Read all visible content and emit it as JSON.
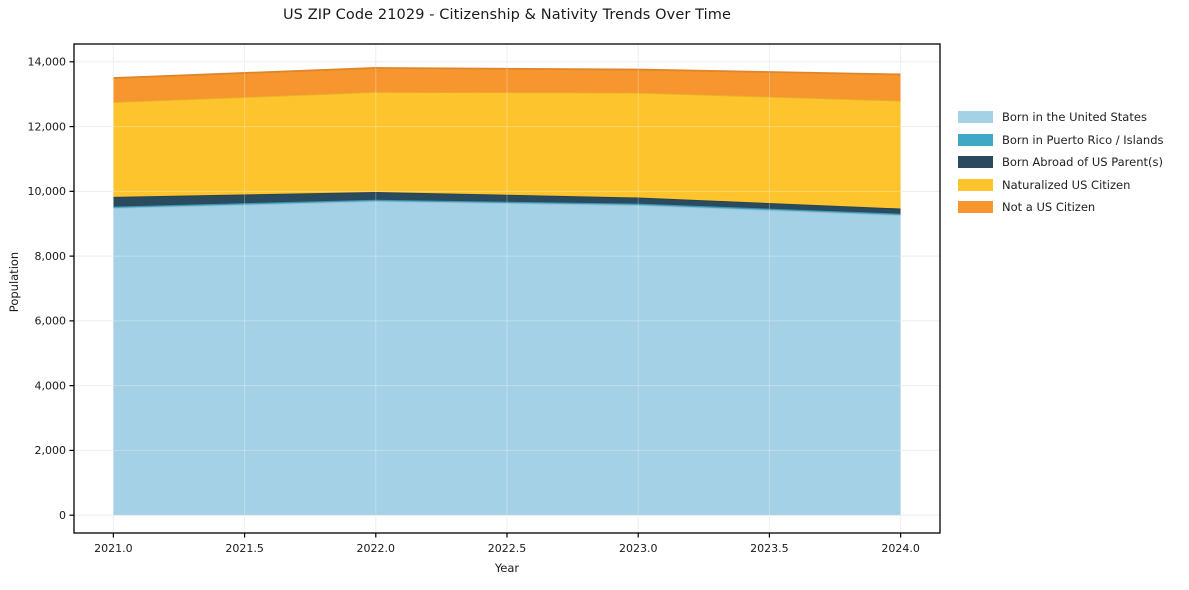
{
  "title": "US ZIP Code 21029 - Citizenship & Nativity Trends Over Time",
  "xlabel": "Year",
  "ylabel": "Population",
  "colors": {
    "background": "#ffffff",
    "axis_frame": "#000000",
    "gridline": "#e9e9e9",
    "tick_label": "#1a1a1a"
  },
  "chart_data": {
    "type": "area",
    "stacked": true,
    "title": "US ZIP Code 21029 - Citizenship & Nativity Trends Over Time",
    "xlabel": "Year",
    "ylabel": "Population",
    "x": [
      2021,
      2022,
      2023,
      2024
    ],
    "series": [
      {
        "name": "Born in the United States",
        "color": "#a4d1e6",
        "values": [
          9490,
          9700,
          9580,
          9270
        ]
      },
      {
        "name": "Born in Puerto Rico / Islands",
        "color": "#40a7c5",
        "values": [
          40,
          40,
          40,
          40
        ]
      },
      {
        "name": "Born Abroad of US Parent(s)",
        "color": "#2a4a5e",
        "values": [
          300,
          240,
          190,
          160
        ]
      },
      {
        "name": "Naturalized US Citizen",
        "color": "#fdc42e",
        "values": [
          2930,
          3090,
          3240,
          3330
        ]
      },
      {
        "name": "Not a US Citizen",
        "color": "#f7952f",
        "values": [
          740,
          740,
          710,
          810
        ]
      }
    ],
    "totals": [
      13500,
      13810,
      13760,
      13610
    ],
    "xticks": [
      2021.0,
      2021.5,
      2022.0,
      2022.5,
      2023.0,
      2023.5,
      2024.0
    ],
    "xtick_labels": [
      "2021.0",
      "2021.5",
      "2022.0",
      "2022.5",
      "2023.0",
      "2023.5",
      "2024.0"
    ],
    "yticks": [
      0,
      2000,
      4000,
      6000,
      8000,
      10000,
      12000,
      14000
    ],
    "ytick_labels": [
      "0",
      "2,000",
      "4,000",
      "6,000",
      "8,000",
      "10,000",
      "12,000",
      "14,000"
    ],
    "xlim": [
      2020.85,
      2024.15
    ],
    "ylim": [
      -550,
      14550
    ],
    "grid": true,
    "legend_position": "outside-right"
  }
}
